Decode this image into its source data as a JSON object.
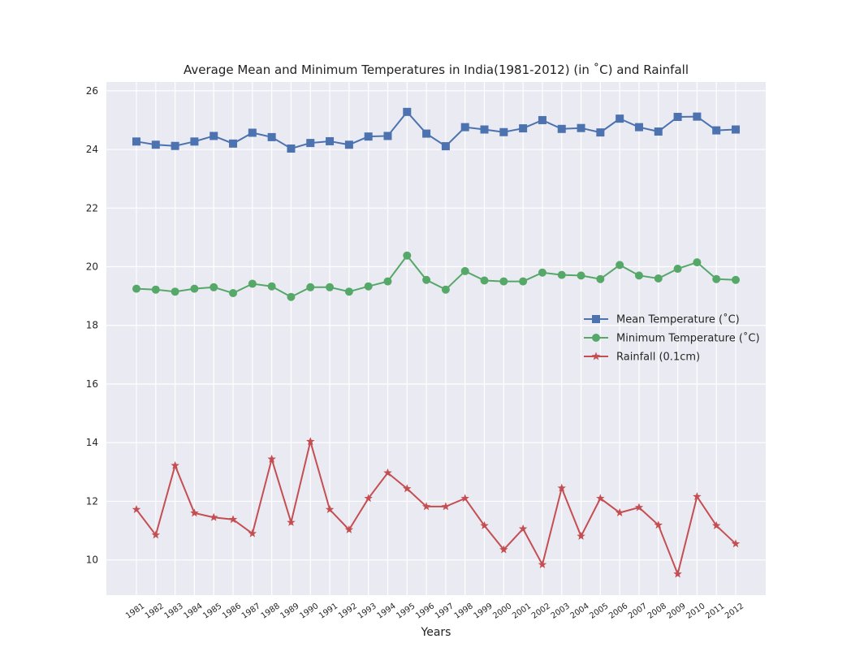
{
  "chart_data": {
    "type": "line",
    "title": "Average Mean and Minimum Temperatures in India(1981-2012) (in ˚C) and Rainfall",
    "xlabel": "Years",
    "ylabel": "",
    "ylim": [
      8.8,
      26.3
    ],
    "yticks": [
      10,
      12,
      14,
      16,
      18,
      20,
      22,
      24,
      26
    ],
    "grid": true,
    "legend_position": "center-right",
    "categories": [
      "1981",
      "1982",
      "1983",
      "1984",
      "1985",
      "1986",
      "1987",
      "1988",
      "1989",
      "1990",
      "1991",
      "1992",
      "1993",
      "1994",
      "1995",
      "1996",
      "1997",
      "1998",
      "1999",
      "2000",
      "2001",
      "2002",
      "2003",
      "2004",
      "2005",
      "2006",
      "2007",
      "2008",
      "2009",
      "2010",
      "2011",
      "2012"
    ],
    "series": [
      {
        "name": "Mean Temperature (˚C)",
        "color": "#4c72b0",
        "marker": "square",
        "values": [
          24.27,
          24.16,
          24.12,
          24.27,
          24.46,
          24.2,
          24.57,
          24.42,
          24.03,
          24.22,
          24.28,
          24.16,
          24.44,
          24.46,
          25.28,
          24.54,
          24.11,
          24.76,
          24.68,
          24.59,
          24.72,
          25.0,
          24.7,
          24.73,
          24.58,
          25.05,
          24.76,
          24.61,
          25.11,
          25.12,
          24.65,
          24.68
        ]
      },
      {
        "name": "Minimum Temperature (˚C)",
        "color": "#55a868",
        "marker": "circle",
        "values": [
          19.25,
          19.22,
          19.15,
          19.25,
          19.3,
          19.1,
          19.42,
          19.33,
          18.97,
          19.3,
          19.3,
          19.15,
          19.33,
          19.5,
          20.38,
          19.55,
          19.22,
          19.85,
          19.53,
          19.5,
          19.5,
          19.8,
          19.72,
          19.7,
          19.58,
          20.06,
          19.7,
          19.6,
          19.93,
          20.15,
          19.58,
          19.55
        ]
      },
      {
        "name": "Rainfall (0.1cm)",
        "color": "#c44e52",
        "marker": "star",
        "values": [
          11.72,
          10.85,
          13.22,
          11.6,
          11.45,
          11.38,
          10.9,
          13.44,
          11.28,
          14.04,
          11.72,
          11.03,
          12.1,
          12.97,
          12.43,
          11.82,
          11.82,
          12.1,
          11.17,
          10.35,
          11.06,
          9.84,
          12.45,
          10.81,
          12.1,
          11.61,
          11.79,
          11.19,
          9.52,
          12.16,
          11.17,
          10.55
        ]
      }
    ]
  }
}
